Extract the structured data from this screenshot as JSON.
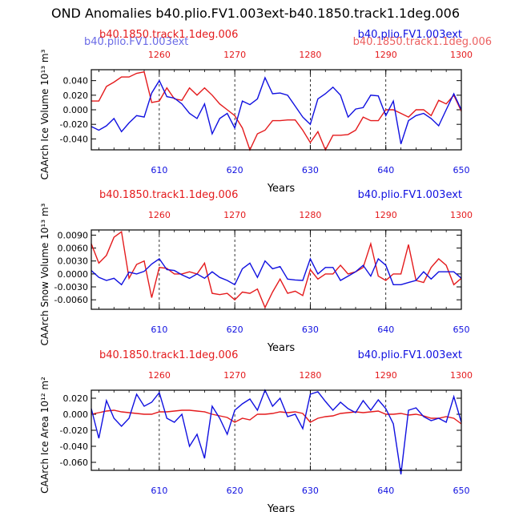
{
  "title": "OND Anomalies b40.plio.FV1.003ext-b40.1850.track1.1deg.006",
  "colors": {
    "red": "#e41a1c",
    "blue": "#1010e0",
    "axis": "#000000"
  },
  "chart_data": [
    {
      "type": "line",
      "ylabel": "CAArch Ice Volume 10¹³ m³",
      "xlabel": "Years",
      "legend_left": "b40.1850.track1.1deg.006",
      "legend_right": "b40.plio.FV1.003ext",
      "ghost_left": "b40.plio.FV1.003ext",
      "ghost_right": "b40.1850.track1.1deg.006",
      "xlim": [
        601,
        650
      ],
      "ylim": [
        -0.055,
        0.055
      ],
      "yticks": [
        0.04,
        0.02,
        0.0,
        -0.02,
        -0.04
      ],
      "ytick_labels": [
        "0.040",
        "0.020",
        "0.000",
        "-0.020",
        "-0.040"
      ],
      "bottom_ticks": [
        610,
        620,
        630,
        640,
        650
      ],
      "top_ticks": [
        1260,
        1270,
        1280,
        1290,
        1300
      ],
      "x": [
        601,
        602,
        603,
        604,
        605,
        606,
        607,
        608,
        609,
        610,
        611,
        612,
        613,
        614,
        615,
        616,
        617,
        618,
        619,
        620,
        621,
        622,
        623,
        624,
        625,
        626,
        627,
        628,
        629,
        630,
        631,
        632,
        633,
        634,
        635,
        636,
        637,
        638,
        639,
        640,
        641,
        642,
        643,
        644,
        645,
        646,
        647,
        648,
        649,
        650
      ],
      "series": [
        {
          "name": "b40.1850.track1.1deg.006",
          "color": "#e41a1c",
          "values": [
            0.012,
            0.012,
            0.032,
            0.038,
            0.045,
            0.045,
            0.05,
            0.052,
            0.01,
            0.012,
            0.03,
            0.015,
            0.013,
            0.03,
            0.02,
            0.03,
            0.02,
            0.008,
            0.0,
            -0.008,
            -0.025,
            -0.055,
            -0.033,
            -0.028,
            -0.015,
            -0.015,
            -0.014,
            -0.014,
            -0.028,
            -0.045,
            -0.03,
            -0.055,
            -0.035,
            -0.035,
            -0.034,
            -0.028,
            -0.01,
            -0.015,
            -0.015,
            0.0,
            0.0,
            -0.005,
            -0.01,
            0.0,
            0.0,
            -0.008,
            0.013,
            0.008,
            0.02,
            -0.002
          ]
        },
        {
          "name": "b40.plio.FV1.003ext",
          "color": "#1010e0",
          "values": [
            -0.023,
            -0.028,
            -0.022,
            -0.012,
            -0.03,
            -0.018,
            -0.008,
            -0.01,
            0.023,
            0.04,
            0.018,
            0.016,
            0.008,
            -0.005,
            -0.012,
            0.008,
            -0.033,
            -0.012,
            -0.005,
            -0.025,
            0.012,
            0.007,
            0.015,
            0.044,
            0.022,
            0.023,
            0.02,
            0.005,
            -0.01,
            -0.02,
            0.015,
            0.022,
            0.031,
            0.02,
            -0.01,
            0.001,
            0.003,
            0.02,
            0.019,
            -0.008,
            0.012,
            -0.047,
            -0.015,
            -0.008,
            -0.005,
            -0.012,
            -0.022,
            0.0,
            0.022,
            0.0
          ]
        }
      ]
    },
    {
      "type": "line",
      "ylabel": "CAArch Snow Volume 10¹³ m³",
      "xlabel": "Years",
      "legend_left": "b40.1850.track1.1deg.006",
      "legend_right": "b40.plio.FV1.003ext",
      "xlim": [
        601,
        650
      ],
      "ylim": [
        -0.0082,
        0.0102
      ],
      "yticks": [
        0.009,
        0.006,
        0.003,
        0.0,
        -0.003,
        -0.006
      ],
      "ytick_labels": [
        "0.0090",
        "0.0060",
        "0.0030",
        "0.0000",
        "-0.0030",
        "-0.0060"
      ],
      "bottom_ticks": [
        610,
        620,
        630,
        640,
        650
      ],
      "top_ticks": [
        1260,
        1270,
        1280,
        1290,
        1300
      ],
      "x": [
        601,
        602,
        603,
        604,
        605,
        606,
        607,
        608,
        609,
        610,
        611,
        612,
        613,
        614,
        615,
        616,
        617,
        618,
        619,
        620,
        621,
        622,
        623,
        624,
        625,
        626,
        627,
        628,
        629,
        630,
        631,
        632,
        633,
        634,
        635,
        636,
        637,
        638,
        639,
        640,
        641,
        642,
        643,
        644,
        645,
        646,
        647,
        648,
        649,
        650
      ],
      "series": [
        {
          "name": "b40.1850.track1.1deg.006",
          "color": "#e41a1c",
          "values": [
            0.007,
            0.0025,
            0.0043,
            0.0085,
            0.0098,
            -0.001,
            0.0022,
            0.003,
            -0.0055,
            0.0015,
            0.0013,
            0.0,
            0.0,
            0.0005,
            0.0,
            0.0025,
            -0.0045,
            -0.0048,
            -0.0045,
            -0.006,
            -0.0042,
            -0.0045,
            -0.0035,
            -0.0078,
            -0.0042,
            -0.0012,
            -0.0045,
            -0.004,
            -0.005,
            0.001,
            -0.0012,
            0.0,
            0.0,
            0.002,
            0.0,
            0.0005,
            0.0015,
            0.007,
            -0.0005,
            -0.0015,
            0.0,
            0.0,
            0.0068,
            -0.0015,
            -0.002,
            0.0015,
            0.0035,
            0.002,
            -0.0025,
            -0.001
          ]
        },
        {
          "name": "b40.plio.FV1.003ext",
          "color": "#1010e0",
          "values": [
            0.0008,
            -0.0008,
            -0.0015,
            -0.001,
            -0.0025,
            0.0004,
            0.0,
            0.0006,
            0.0023,
            0.0035,
            0.001,
            0.0008,
            -0.0002,
            -0.001,
            0.0,
            -0.001,
            0.0005,
            -0.0008,
            -0.0015,
            -0.0025,
            0.0012,
            0.0025,
            -0.0008,
            0.003,
            0.0012,
            0.0017,
            -0.0012,
            -0.0014,
            -0.0015,
            0.0035,
            0.0,
            0.0015,
            0.0015,
            -0.0015,
            -0.0005,
            0.0005,
            0.002,
            -0.0005,
            0.0035,
            0.002,
            -0.0025,
            -0.0025,
            -0.002,
            -0.0015,
            0.0005,
            -0.0012,
            0.0005,
            0.0005,
            0.0005,
            -0.001
          ]
        }
      ]
    },
    {
      "type": "line",
      "ylabel": "CAArch Ice Area 10¹² m²",
      "xlabel": "Years",
      "legend_left": "b40.1850.track1.1deg.006",
      "legend_right": "b40.plio.FV1.003ext",
      "xlim": [
        601,
        650
      ],
      "ylim": [
        -0.07,
        0.03
      ],
      "yticks": [
        0.02,
        0.0,
        -0.02,
        -0.04,
        -0.06
      ],
      "ytick_labels": [
        "0.020",
        "0.000",
        "-0.020",
        "-0.040",
        "-0.060"
      ],
      "bottom_ticks": [
        610,
        620,
        630,
        640,
        650
      ],
      "top_ticks": [
        1260,
        1270,
        1280,
        1290,
        1300
      ],
      "x": [
        601,
        602,
        603,
        604,
        605,
        606,
        607,
        608,
        609,
        610,
        611,
        612,
        613,
        614,
        615,
        616,
        617,
        618,
        619,
        620,
        621,
        622,
        623,
        624,
        625,
        626,
        627,
        628,
        629,
        630,
        631,
        632,
        633,
        634,
        635,
        636,
        637,
        638,
        639,
        640,
        641,
        642,
        643,
        644,
        645,
        646,
        647,
        648,
        649,
        650
      ],
      "series": [
        {
          "name": "b40.1850.track1.1deg.006",
          "color": "#e41a1c",
          "values": [
            0.0,
            0.002,
            0.004,
            0.005,
            0.003,
            0.002,
            0.001,
            0.0,
            0.0,
            0.003,
            0.003,
            0.004,
            0.005,
            0.005,
            0.004,
            0.003,
            0.0,
            -0.002,
            -0.004,
            -0.01,
            -0.005,
            -0.007,
            0.0,
            0.0,
            0.001,
            0.003,
            0.002,
            0.003,
            0.001,
            -0.01,
            -0.005,
            -0.003,
            -0.002,
            0.001,
            0.002,
            0.003,
            0.002,
            0.003,
            0.004,
            0.0,
            0.0,
            0.001,
            -0.001,
            0.0,
            -0.002,
            -0.005,
            -0.005,
            -0.003,
            -0.005,
            -0.012
          ]
        },
        {
          "name": "b40.plio.FV1.003ext",
          "color": "#1010e0",
          "values": [
            0.007,
            -0.03,
            0.017,
            -0.005,
            -0.015,
            -0.005,
            0.025,
            0.01,
            0.015,
            0.027,
            -0.005,
            -0.01,
            0.0,
            -0.04,
            -0.025,
            -0.055,
            0.01,
            -0.005,
            -0.025,
            0.005,
            0.013,
            0.019,
            0.005,
            0.03,
            0.01,
            0.02,
            -0.003,
            0.0,
            -0.018,
            0.025,
            0.028,
            0.016,
            0.005,
            0.015,
            0.007,
            0.002,
            0.017,
            0.005,
            0.018,
            0.007,
            -0.012,
            -0.075,
            0.005,
            0.008,
            -0.003,
            -0.008,
            -0.005,
            -0.01,
            0.022,
            -0.01
          ]
        }
      ]
    }
  ]
}
